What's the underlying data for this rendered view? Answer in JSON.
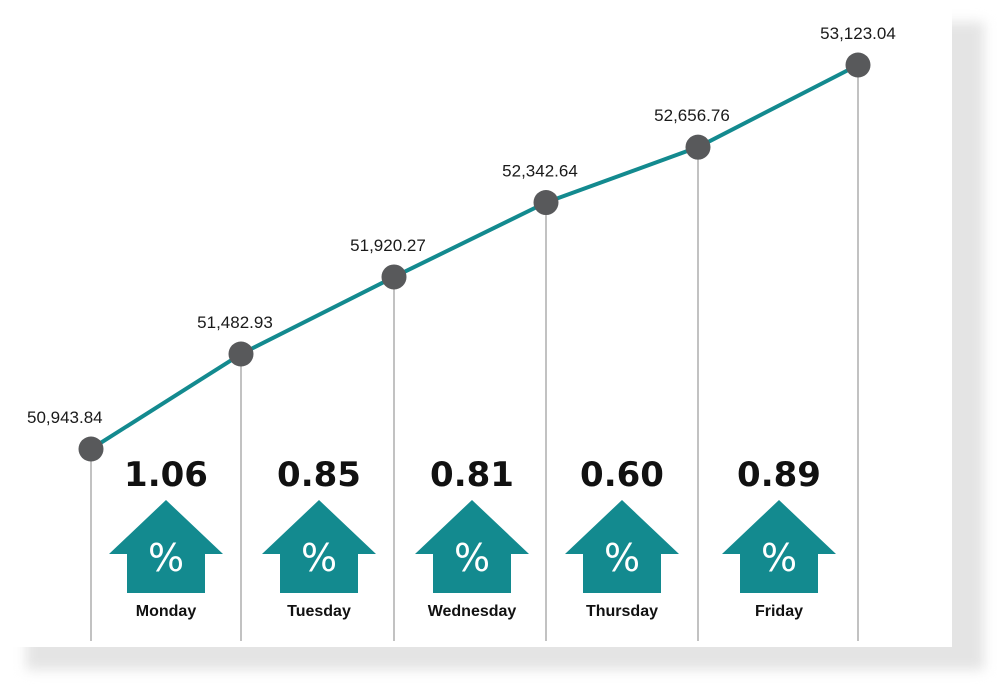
{
  "colors": {
    "line": "#138a8f",
    "marker": "#58595b",
    "arrow": "#138a8f",
    "drop_line": "#9a9a9a"
  },
  "icons": {
    "arrow": "up-arrow-percent-icon",
    "symbol": "%"
  },
  "chart_data": {
    "type": "line",
    "title": "",
    "xlabel": "",
    "ylabel": "",
    "x": [
      "Monday",
      "Tuesday",
      "Wednesday",
      "Thursday",
      "Friday"
    ],
    "ylim": [
      50700,
      53300
    ],
    "start_point": {
      "value": 50943.84,
      "label": "50,943.84"
    },
    "series": [
      {
        "values": [
          51482.93,
          51920.27,
          52342.64,
          52656.76,
          53123.04
        ],
        "labels": [
          "51,482.93",
          "51,920.27",
          "52,342.64",
          "52,656.76",
          "53,123.04"
        ]
      }
    ],
    "percent_changes": {
      "values": [
        1.06,
        0.85,
        0.81,
        0.6,
        0.89
      ],
      "labels": [
        "1.06",
        "0.85",
        "0.81",
        "0.60",
        "0.89"
      ]
    },
    "grid": false,
    "legend": "none"
  }
}
